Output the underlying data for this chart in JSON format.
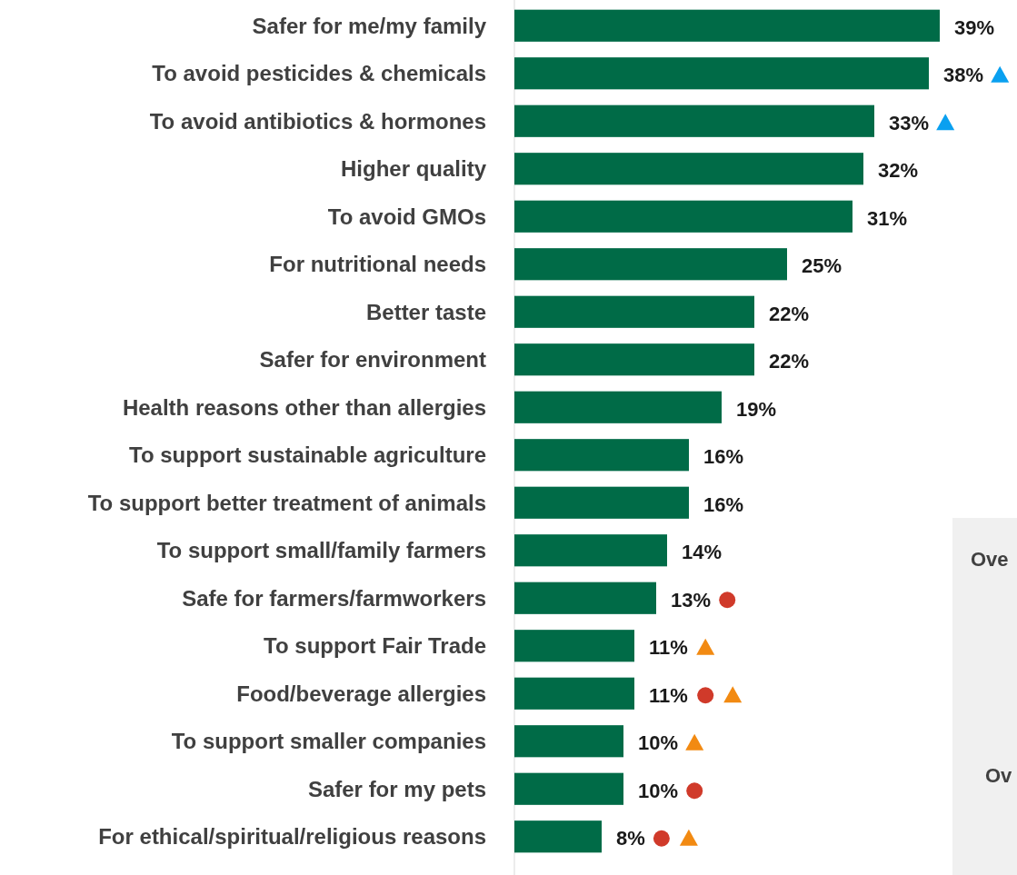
{
  "chart_data": {
    "type": "bar",
    "orientation": "horizontal",
    "relative": false,
    "categories": [
      "Safer for me/my family",
      "To avoid pesticides & chemicals",
      "To avoid antibiotics & hormones",
      "Higher quality",
      "To avoid GMOs",
      "For nutritional needs",
      "Better taste",
      "Safer for environment",
      "Health reasons other than allergies",
      "To support sustainable agriculture",
      "To support better treatment of animals",
      "To support small/family farmers",
      "Safe for farmers/farmworkers",
      "To support Fair Trade",
      "Food/beverage allergies",
      "To support smaller companies",
      "Safer for my pets",
      "For ethical/spiritual/religious reasons"
    ],
    "values": [
      39,
      38,
      33,
      32,
      31,
      25,
      22,
      22,
      19,
      16,
      16,
      14,
      13,
      11,
      11,
      10,
      10,
      8
    ],
    "value_labels": [
      "39%",
      "38%",
      "33%",
      "32%",
      "31%",
      "25%",
      "22%",
      "22%",
      "19%",
      "16%",
      "16%",
      "14%",
      "13%",
      "11%",
      "11%",
      "10%",
      "10%",
      "8%"
    ],
    "color": "#006b47",
    "annotations": [
      "Ove",
      "Ov"
    ]
  }
}
